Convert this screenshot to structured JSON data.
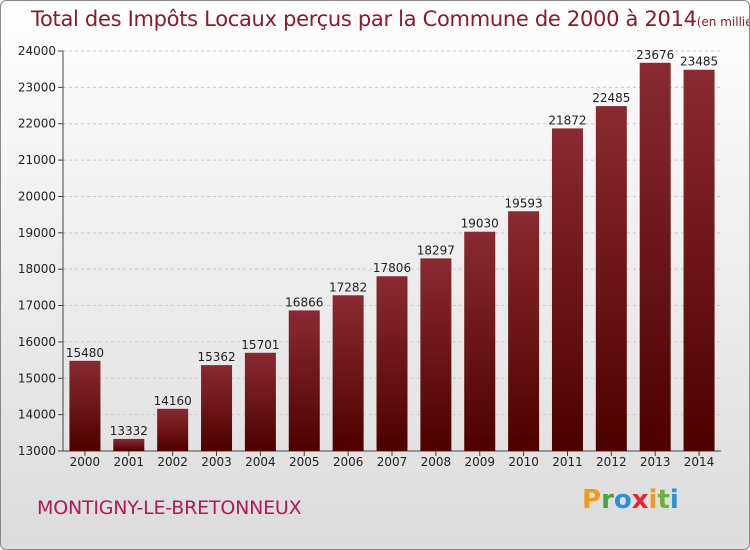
{
  "header": {
    "title": "Total des Impôts Locaux perçus par la Commune de 2000 à 2014",
    "unit": "(en milliers d'€)"
  },
  "footer": {
    "commune": "MONTIGNY-LE-BRETONNEUX",
    "logo": {
      "letters": [
        "P",
        "r",
        "o",
        "x",
        "i",
        "t",
        "i"
      ],
      "colors": [
        "#f29a1f",
        "#4aa33c",
        "#2f8fd6",
        "#e6262e",
        "#f29a1f",
        "#6bb33c",
        "#2f8fd6"
      ]
    }
  },
  "colors": {
    "bar_top": "#8a2a33",
    "bar_bottom": "#4d0000",
    "title": "#8b1a2b",
    "commune": "#b0195a"
  },
  "chart_data": {
    "type": "bar",
    "title": "Total des Impôts Locaux perçus par la Commune de 2000 à 2014",
    "ylabel": "en milliers d'€",
    "xlabel": "",
    "categories": [
      "2000",
      "2001",
      "2002",
      "2003",
      "2004",
      "2005",
      "2006",
      "2007",
      "2008",
      "2009",
      "2010",
      "2011",
      "2012",
      "2013",
      "2014"
    ],
    "values": [
      15480,
      13332,
      14160,
      15362,
      15701,
      16866,
      17282,
      17806,
      18297,
      19030,
      19593,
      21872,
      22485,
      23676,
      23485
    ],
    "ylim": [
      13000,
      24000
    ],
    "yticks": [
      13000,
      14000,
      15000,
      16000,
      17000,
      18000,
      19000,
      20000,
      21000,
      22000,
      23000,
      24000
    ],
    "grid": true
  }
}
